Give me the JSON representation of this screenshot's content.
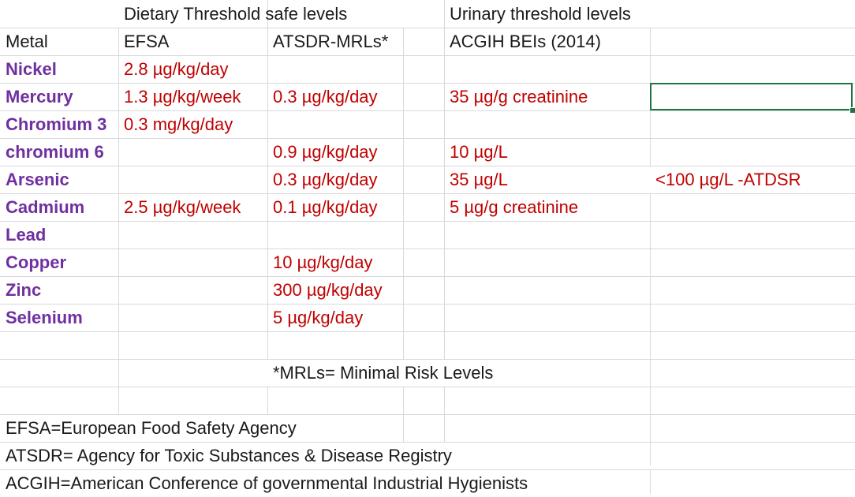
{
  "headers": {
    "dietary": "Dietary Threshold safe levels",
    "urinary": "Urinary threshold levels",
    "metal": "Metal",
    "efsa": "EFSA",
    "atsdr": "ATSDR-MRLs*",
    "acgih": "ACGIH BEIs (2014)"
  },
  "rows": [
    {
      "metal": "Nickel",
      "efsa": "2.8 µg/kg/day",
      "atsdr": "",
      "acgih": "",
      "extra": ""
    },
    {
      "metal": "Mercury",
      "efsa": "1.3 µg/kg/week",
      "atsdr": "0.3 µg/kg/day",
      "acgih": "35 µg/g creatinine",
      "extra": ""
    },
    {
      "metal": "Chromium 3",
      "efsa": "0.3 mg/kg/day",
      "atsdr": "",
      "acgih": "",
      "extra": ""
    },
    {
      "metal": "chromium 6",
      "efsa": "",
      "atsdr": "0.9 µg/kg/day",
      "acgih": "10 µg/L",
      "extra": ""
    },
    {
      "metal": "Arsenic",
      "efsa": "",
      "atsdr": "0.3 µg/kg/day",
      "acgih": "35 µg/L",
      "extra": "<100 µg/L -ATDSR"
    },
    {
      "metal": "Cadmium",
      "efsa": "2.5 µg/kg/week",
      "atsdr": "0.1 µg/kg/day",
      "acgih": "5 µg/g creatinine",
      "extra": ""
    },
    {
      "metal": "Lead",
      "efsa": "",
      "atsdr": "",
      "acgih": "",
      "extra": ""
    },
    {
      "metal": "Copper",
      "efsa": "",
      "atsdr": "10 µg/kg/day",
      "acgih": "",
      "extra": ""
    },
    {
      "metal": "Zinc",
      "efsa": "",
      "atsdr": "300 µg/kg/day",
      "acgih": "",
      "extra": ""
    },
    {
      "metal": "Selenium",
      "efsa": "",
      "atsdr": "5 µg/kg/day",
      "acgih": "",
      "extra": ""
    }
  ],
  "notes": {
    "mrl": "*MRLs= Minimal Risk Levels",
    "efsa": "EFSA=European Food Safety Agency",
    "atsdr": "ATSDR= Agency for Toxic Substances & Disease Registry",
    "acgih": "ACGIH=American Conference of governmental Industrial Hygienists"
  }
}
